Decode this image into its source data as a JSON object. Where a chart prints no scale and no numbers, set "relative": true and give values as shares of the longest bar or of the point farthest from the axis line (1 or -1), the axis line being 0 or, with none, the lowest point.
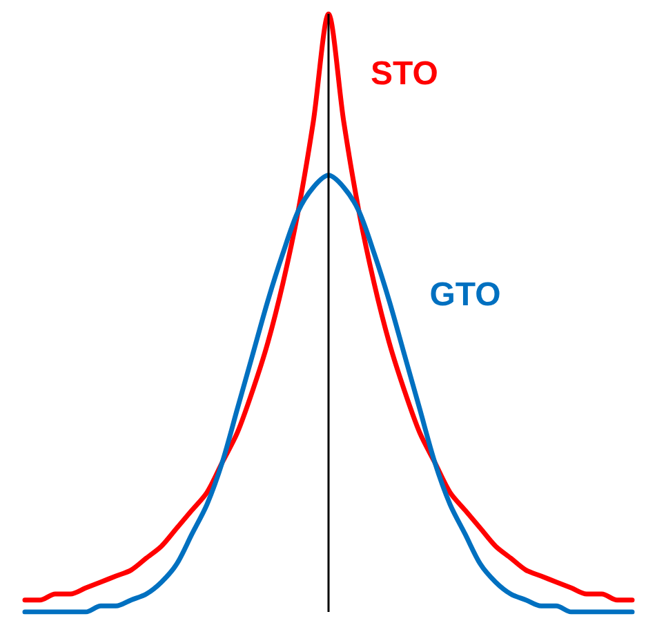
{
  "chart_data": {
    "type": "line",
    "relative": true,
    "grid": false,
    "legend": false,
    "marker": "none",
    "line_style": "solid",
    "categories": [
      null,
      null,
      null,
      null,
      null,
      null,
      null,
      null,
      null,
      null,
      null,
      null,
      null,
      null,
      null,
      null,
      null,
      null,
      null,
      null,
      null,
      null,
      null,
      null,
      null,
      null,
      null,
      null,
      null,
      null,
      null,
      null,
      null,
      null,
      null,
      null,
      null,
      null,
      null,
      null,
      null
    ],
    "series": [
      {
        "name": "STO",
        "color": "#ff0000",
        "values": [
          0.02,
          0.02,
          0.03,
          0.03,
          0.04,
          0.05,
          0.06,
          0.07,
          0.09,
          0.11,
          0.14,
          0.17,
          0.2,
          0.25,
          0.3,
          0.37,
          0.45,
          0.55,
          0.67,
          0.82,
          1,
          0.82,
          0.67,
          0.55,
          0.45,
          0.37,
          0.3,
          0.25,
          0.2,
          0.17,
          0.14,
          0.11,
          0.09,
          0.07,
          0.06,
          0.05,
          0.04,
          0.03,
          0.03,
          0.02,
          0.02
        ]
      },
      {
        "name": "GTO",
        "color": "#0070c0",
        "values": [
          0,
          0,
          0,
          0,
          0,
          0.01,
          0.01,
          0.02,
          0.03,
          0.05,
          0.08,
          0.13,
          0.18,
          0.25,
          0.34,
          0.43,
          0.52,
          0.6,
          0.67,
          0.71,
          0.73,
          0.71,
          0.67,
          0.6,
          0.52,
          0.43,
          0.34,
          0.25,
          0.18,
          0.13,
          0.08,
          0.05,
          0.03,
          0.02,
          0.01,
          0.01,
          0,
          0,
          0,
          0,
          0
        ]
      }
    ]
  }
}
